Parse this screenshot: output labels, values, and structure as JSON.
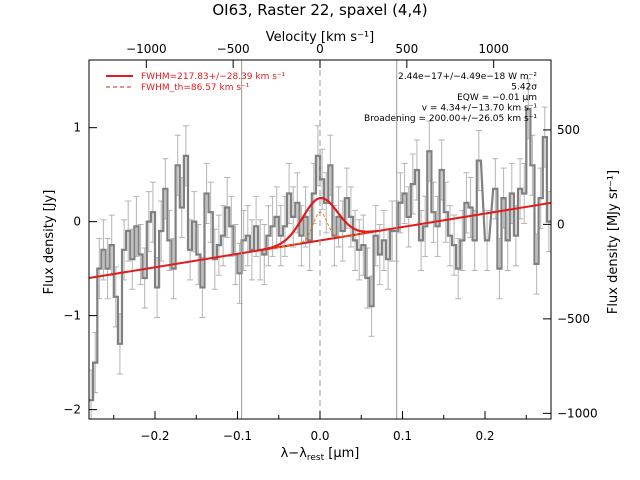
{
  "chart_data": {
    "type": "line",
    "title": "OI63, Raster 22, spaxel (4,4)",
    "xlabel": "λ−λ",
    "xlabel_sub": "rest",
    "xlabel_unit": " [μm]",
    "ylabel_left": "Flux density [Jy]",
    "ylabel_right": "Flux density [MJy sr⁻¹]",
    "top_axis_label": "Velocity [km s⁻¹]",
    "xlim": [
      -0.28,
      0.28
    ],
    "ylim": [
      -2.1,
      1.72
    ],
    "right_ylim": [
      -1030,
      870
    ],
    "top_xlim": [
      -1330,
      1330
    ],
    "x_ticks": [
      -0.2,
      -0.1,
      0.0,
      0.1,
      0.2
    ],
    "x_tick_labels": [
      "−0.2",
      "−0.1",
      "0.0",
      "0.1",
      "0.2"
    ],
    "y_ticks": [
      -2,
      -1,
      0,
      1
    ],
    "y_tick_labels": [
      "−2",
      "−1",
      "0",
      "1"
    ],
    "right_ticks": [
      -1000,
      -500,
      0,
      500
    ],
    "right_tick_labels": [
      "−1000",
      "−500",
      "0",
      "500"
    ],
    "top_ticks": [
      -1000,
      -500,
      0,
      500,
      1000
    ],
    "top_tick_labels": [
      "−1000",
      "−500",
      "0",
      "500",
      "1000"
    ],
    "vlines_x": [
      -0.095,
      0.0,
      0.093
    ],
    "legend": [
      {
        "label": "FWHM=217.83+/−28.39 km s⁻¹",
        "color": "#e31b1b",
        "style": "solid"
      },
      {
        "label": "FWHM_th=86.57 km s⁻¹",
        "color": "#e31b1b",
        "style": "dashed"
      }
    ],
    "annotations": [
      "2.44e−17+/−4.49e−18 W m⁻²",
      "5.42σ",
      "EQW = −0.01 μm",
      "v = 4.34+/−13.70 km s⁻¹",
      "Broadening = 200.00+/−26.05 km s⁻¹"
    ],
    "continuum": {
      "x": [
        -0.28,
        0.28
      ],
      "y": [
        -0.6,
        0.2
      ]
    },
    "fit_line": {
      "center": 0.0,
      "amplitude": 0.45,
      "sigma": 0.021
    },
    "thermal_line": {
      "center": 0.0,
      "amplitude": 0.3,
      "sigma": 0.0085
    },
    "colors": {
      "data": "#808080",
      "errorbar": "#b4b4b4",
      "fit": "#e31b1b",
      "thermal": "#e07a10",
      "vline": "#999999"
    },
    "series": [
      {
        "name": "data",
        "x": [
          -0.2775,
          -0.2725,
          -0.2675,
          -0.2625,
          -0.2575,
          -0.2525,
          -0.2475,
          -0.2425,
          -0.2375,
          -0.2325,
          -0.2275,
          -0.2225,
          -0.2175,
          -0.2125,
          -0.2075,
          -0.2025,
          -0.1975,
          -0.1925,
          -0.1875,
          -0.1825,
          -0.1775,
          -0.1725,
          -0.1675,
          -0.1625,
          -0.1575,
          -0.1525,
          -0.1475,
          -0.1425,
          -0.1375,
          -0.1325,
          -0.1275,
          -0.1225,
          -0.1175,
          -0.1125,
          -0.1075,
          -0.1025,
          -0.0975,
          -0.0925,
          -0.0875,
          -0.0825,
          -0.0775,
          -0.0725,
          -0.0675,
          -0.0625,
          -0.0575,
          -0.0525,
          -0.0475,
          -0.0425,
          -0.0375,
          -0.0325,
          -0.0275,
          -0.0225,
          -0.0175,
          -0.0125,
          -0.0075,
          -0.0025,
          0.0025,
          0.0075,
          0.0125,
          0.0175,
          0.0225,
          0.0275,
          0.0325,
          0.0375,
          0.0425,
          0.0475,
          0.0525,
          0.0575,
          0.0625,
          0.0675,
          0.0725,
          0.0775,
          0.0825,
          0.0875,
          0.0925,
          0.0975,
          0.1025,
          0.1075,
          0.1125,
          0.1175,
          0.1225,
          0.1275,
          0.1325,
          0.1375,
          0.1425,
          0.1475,
          0.1525,
          0.1575,
          0.1625,
          0.1675,
          0.1725,
          0.1775,
          0.1825,
          0.1875,
          0.1925,
          0.2025,
          0.2125,
          0.2175,
          0.2225,
          0.2275,
          0.2325,
          0.2375,
          0.2425,
          0.2475,
          0.2525,
          0.2575,
          0.2625,
          0.2675,
          0.2725,
          0.2775
        ],
        "y": [
          -1.9,
          -1.5,
          -0.5,
          -0.3,
          -0.5,
          -0.25,
          -0.8,
          -1.3,
          -0.3,
          -0.1,
          -0.4,
          -0.05,
          -0.35,
          -0.6,
          0.0,
          0.1,
          -0.7,
          -0.1,
          0.35,
          -0.2,
          -0.5,
          0.6,
          0.15,
          0.7,
          -0.3,
          0.0,
          -0.35,
          -0.7,
          0.3,
          0.1,
          -0.4,
          -0.25,
          -0.15,
          0.15,
          -0.05,
          -0.35,
          -0.55,
          -0.2,
          -0.15,
          -0.3,
          -0.05,
          -0.3,
          -0.35,
          -0.15,
          -0.05,
          0.05,
          -0.15,
          -0.05,
          0.3,
          0.05,
          0.2,
          -0.15,
          0.05,
          -0.2,
          0.3,
          0.7,
          0.45,
          0.2,
          0.6,
          -0.15,
          0.05,
          -0.1,
          0.25,
          0.05,
          -0.2,
          -0.3,
          -0.25,
          -0.6,
          -0.9,
          -0.15,
          -0.35,
          -0.2,
          -0.4,
          -0.1,
          -0.1,
          0.2,
          0.3,
          0.05,
          0.4,
          0.55,
          -0.2,
          -0.05,
          0.75,
          0.1,
          -0.05,
          0.55,
          0.1,
          -0.15,
          -0.25,
          -0.5,
          -0.2,
          0.2,
          0.15,
          -0.2,
          0.65,
          -0.2,
          0.35,
          -0.5,
          0.25,
          -0.2,
          0.3,
          -0.15,
          0.35,
          0.3,
          1.2,
          0.6,
          -0.45,
          0.25,
          0.9,
          0.0
        ],
        "yerr": 0.32
      }
    ]
  }
}
